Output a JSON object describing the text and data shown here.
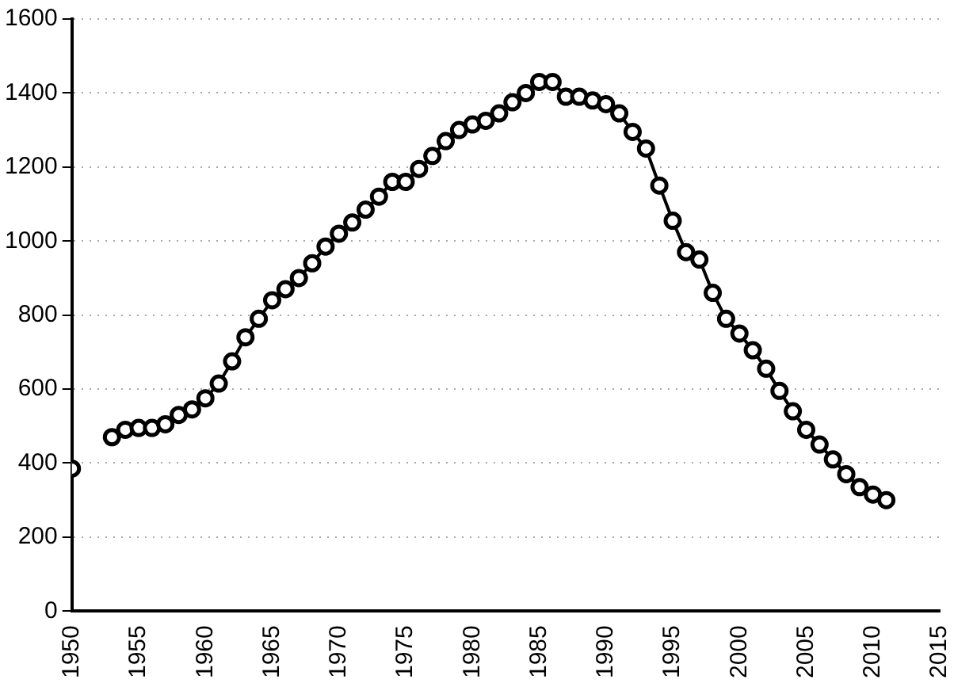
{
  "chart_data": {
    "type": "line",
    "x": [
      1950,
      1951,
      1952,
      1953,
      1954,
      1955,
      1956,
      1957,
      1958,
      1959,
      1960,
      1961,
      1962,
      1963,
      1964,
      1965,
      1966,
      1967,
      1968,
      1969,
      1970,
      1971,
      1972,
      1973,
      1974,
      1975,
      1976,
      1977,
      1978,
      1979,
      1980,
      1981,
      1982,
      1983,
      1984,
      1985,
      1986,
      1987,
      1988,
      1989,
      1990,
      1991,
      1992,
      1993,
      1994,
      1995,
      1996,
      1997,
      1998,
      1999,
      2000,
      2001,
      2002,
      2003,
      2004,
      2005,
      2006,
      2007,
      2008,
      2009,
      2010,
      2011
    ],
    "series": [
      {
        "color": "#000000",
        "values": [
          385,
          null,
          null,
          470,
          490,
          495,
          495,
          505,
          530,
          545,
          575,
          615,
          675,
          740,
          790,
          840,
          870,
          900,
          940,
          985,
          1020,
          1050,
          1085,
          1120,
          1160,
          1160,
          1195,
          1230,
          1270,
          1300,
          1315,
          1325,
          1345,
          1375,
          1400,
          1430,
          1430,
          1390,
          1390,
          1380,
          1370,
          1345,
          1295,
          1250,
          1150,
          1055,
          970,
          950,
          860,
          790,
          750,
          705,
          655,
          595,
          540,
          490,
          450,
          410,
          370,
          335,
          315,
          300
        ]
      }
    ],
    "xlim": [
      1950,
      2015
    ],
    "xticks": [
      1950,
      1955,
      1960,
      1965,
      1970,
      1975,
      1980,
      1985,
      1990,
      1995,
      2000,
      2005,
      2010,
      2015
    ],
    "ylim": [
      0,
      1600
    ],
    "yticks": [
      0,
      200,
      400,
      600,
      800,
      1000,
      1200,
      1400,
      1600
    ],
    "grid": "y",
    "legend": false,
    "marker": "circle",
    "line_style": "solid"
  }
}
